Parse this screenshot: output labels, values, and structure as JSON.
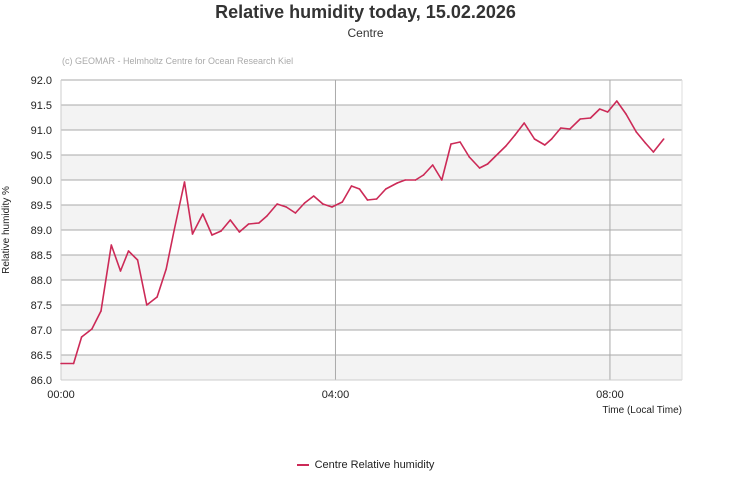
{
  "chart_data": {
    "type": "line",
    "title": "Relative humidity today, 15.02.2026",
    "subtitle": "Centre",
    "credit": "(c) GEOMAR - Helmholtz Centre for Ocean Research Kiel",
    "xlabel": "Time (Local Time)",
    "ylabel": "Relative humidity %",
    "xlim_minutes": [
      0,
      543
    ],
    "ylim": [
      86.0,
      92.0
    ],
    "x_ticks": [
      {
        "minutes": 0,
        "label": "00:00"
      },
      {
        "minutes": 240,
        "label": "04:00"
      },
      {
        "minutes": 480,
        "label": "08:00"
      }
    ],
    "y_ticks": [
      "86.0",
      "86.5",
      "87.0",
      "87.5",
      "88.0",
      "88.5",
      "89.0",
      "89.5",
      "90.0",
      "90.5",
      "91.0",
      "91.5",
      "92.0"
    ],
    "legend": "bottom",
    "color": "#cc2a57",
    "series": [
      {
        "name": "Centre Relative humidity",
        "x_minutes": [
          0,
          11,
          18,
          27,
          35,
          44,
          52,
          59,
          67,
          75,
          84,
          92,
          99,
          108,
          115,
          124,
          132,
          140,
          148,
          156,
          164,
          173,
          180,
          189,
          197,
          205,
          213,
          221,
          229,
          237,
          246,
          254,
          261,
          268,
          276,
          284,
          294,
          301,
          310,
          317,
          325,
          333,
          341,
          349,
          357,
          366,
          373,
          381,
          389,
          397,
          405,
          414,
          423,
          429,
          437,
          445,
          454,
          463,
          471,
          478,
          486,
          494,
          503,
          511,
          518,
          527
        ],
        "values": [
          86.33,
          86.33,
          86.86,
          87.02,
          87.38,
          88.7,
          88.18,
          88.58,
          88.4,
          87.5,
          87.66,
          88.22,
          89.0,
          89.96,
          88.92,
          89.32,
          88.9,
          88.98,
          89.2,
          88.96,
          89.12,
          89.14,
          89.28,
          89.52,
          89.46,
          89.34,
          89.54,
          89.68,
          89.52,
          89.46,
          89.56,
          89.88,
          89.82,
          89.6,
          89.62,
          89.82,
          89.94,
          90.0,
          90.0,
          90.1,
          90.3,
          90.0,
          90.72,
          90.76,
          90.46,
          90.24,
          90.32,
          90.5,
          90.68,
          90.9,
          91.14,
          90.82,
          90.7,
          90.82,
          91.04,
          91.02,
          91.22,
          91.24,
          91.42,
          91.36,
          91.58,
          91.32,
          90.96,
          90.74,
          90.56,
          90.82
        ]
      }
    ]
  }
}
